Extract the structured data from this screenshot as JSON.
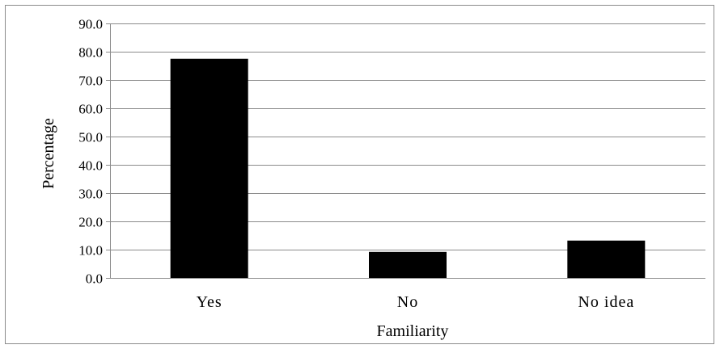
{
  "chart_data": {
    "type": "bar",
    "categories": [
      "Yes",
      "No",
      "No idea"
    ],
    "values": [
      77.5,
      9.2,
      13.2
    ],
    "xlabel": "Familiarity",
    "ylabel": "Percentage",
    "ylim": [
      0,
      90
    ],
    "y_ticks": [
      "0.0",
      "10.0",
      "20.0",
      "30.0",
      "40.0",
      "50.0",
      "60.0",
      "70.0",
      "80.0",
      "90.0"
    ],
    "grid": true,
    "legend": "none",
    "colors": {
      "bar": "#000000",
      "grid": "#8c8c8c",
      "frame": "#8c8c8c"
    }
  }
}
